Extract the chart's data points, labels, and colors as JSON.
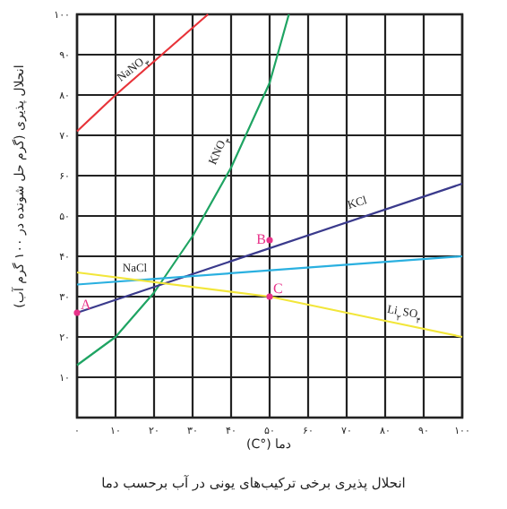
{
  "chart_data": {
    "type": "line",
    "title": "انحلال پذیری برخی ترکیب‌های یونی در آب برحسب دما",
    "xlabel": "دما (°C)",
    "ylabel": "انحلال پذیری (گرم حل شونده در ۱۰۰ گرم آب)",
    "xlim": [
      0,
      100
    ],
    "ylim": [
      0,
      100
    ],
    "xticks": [
      {
        "value": 0,
        "label": "۰"
      },
      {
        "value": 10,
        "label": "۱۰"
      },
      {
        "value": 20,
        "label": "۲۰"
      },
      {
        "value": 30,
        "label": "۳۰"
      },
      {
        "value": 40,
        "label": "۴۰"
      },
      {
        "value": 50,
        "label": "۵۰"
      },
      {
        "value": 60,
        "label": "۶۰"
      },
      {
        "value": 70,
        "label": "۷۰"
      },
      {
        "value": 80,
        "label": "۸۰"
      },
      {
        "value": 90,
        "label": "۹۰"
      },
      {
        "value": 100,
        "label": "۱۰۰"
      }
    ],
    "yticks": [
      {
        "value": 0,
        "label": null
      },
      {
        "value": 10,
        "label": "۱۰"
      },
      {
        "value": 20,
        "label": "۲۰"
      },
      {
        "value": 30,
        "label": "۳۰"
      },
      {
        "value": 40,
        "label": "۴۰"
      },
      {
        "value": 50,
        "label": "۵۰"
      },
      {
        "value": 60,
        "label": "۶۰"
      },
      {
        "value": 70,
        "label": "۷۰"
      },
      {
        "value": 80,
        "label": "۸۰"
      },
      {
        "value": 90,
        "label": "۹۰"
      },
      {
        "value": 100,
        "label": "۱۰۰"
      }
    ],
    "grid": true,
    "series": [
      {
        "name": "NaNO$_{۳}$",
        "color": "#e8343a",
        "x": [
          0,
          10,
          34
        ],
        "values": [
          71,
          80,
          100
        ]
      },
      {
        "name": "KNO$_{۳}$",
        "color": "#1fa463",
        "x": [
          0,
          10,
          20,
          30,
          40,
          50,
          55
        ],
        "values": [
          13,
          20,
          31,
          45,
          62,
          83,
          100
        ]
      },
      {
        "name": "KCl",
        "color": "#3a3a8c",
        "x": [
          0,
          100
        ],
        "values": [
          26,
          58
        ]
      },
      {
        "name": "NaCl",
        "color": "#2ab0e0",
        "x": [
          0,
          100
        ],
        "values": [
          33,
          40
        ]
      },
      {
        "name": "Li$_{۲}$SO$_{۴}$",
        "color": "#f2e63a",
        "x": [
          0,
          50,
          80,
          100
        ],
        "values": [
          36,
          30,
          24,
          20
        ]
      },
      {
        "type": "scatter",
        "color": "#e8338a",
        "x": [
          0,
          50,
          50
        ],
        "values": [
          26,
          44,
          30
        ]
      }
    ],
    "annotations": [
      "A",
      "B",
      "C"
    ]
  }
}
